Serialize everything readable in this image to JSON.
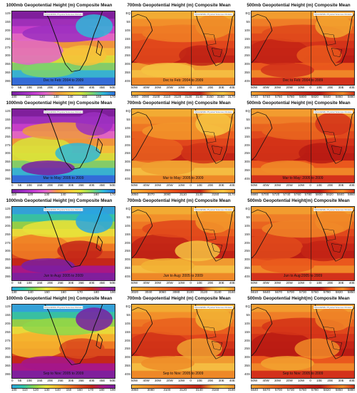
{
  "panels": [
    {
      "title": "1000mb Geopotential Height (m) Composite Mean",
      "period": "Dec to Feb: 2004 to 2009",
      "lats": [
        "12S",
        "15S",
        "20S",
        "25S",
        "27S",
        "30S",
        "35S",
        "36S",
        "39S"
      ],
      "lons": [
        "0",
        "5E",
        "10E",
        "15E",
        "20E",
        "25E",
        "30E",
        "35E",
        "40E",
        "45E",
        "50E"
      ],
      "ticks": [
        "100",
        "110",
        "120",
        "130",
        "140",
        "150",
        "160",
        "170"
      ],
      "style": "purple"
    },
    {
      "title": "700mb Geopotential Height (m) Composite Mean",
      "period": "Dec to Feb: 2004 to 2009",
      "lats": [
        "EQ",
        "5S",
        "10S",
        "15S",
        "20S",
        "25S",
        "30S",
        "35S",
        "40S"
      ],
      "lons": [
        "50W",
        "40W",
        "30W",
        "20W",
        "10W",
        "0",
        "10E",
        "20E",
        "30E",
        "40E"
      ],
      "ticks": [
        "3080",
        "3090",
        "3100",
        "3110",
        "3120",
        "3130",
        "3140",
        "3150",
        "3160",
        "3170"
      ],
      "style": "warm"
    },
    {
      "title": "500mb Geopotential Height (m) Composite Mean",
      "period": "Dec to Feb: 2004 to 2009",
      "lats": [
        "EQ",
        "5S",
        "10S",
        "15S",
        "20S",
        "25S",
        "30S",
        "35S",
        "40S"
      ],
      "lons": [
        "50W",
        "40W",
        "30W",
        "20W",
        "10W",
        "0",
        "10E",
        "20E",
        "30E",
        "40E"
      ],
      "ticks": [
        "5720",
        "5740",
        "5760",
        "5780",
        "5800",
        "5820",
        "5840",
        "5860",
        "5880"
      ],
      "style": "hot"
    },
    {
      "title": "1000mb Geopotential Height (m) Composite Mean",
      "period": "Mar to May: 2005 to 2009",
      "lats": [
        "12S",
        "15S",
        "20S",
        "25S",
        "27S",
        "30S",
        "35S",
        "36S",
        "39S"
      ],
      "lons": [
        "0",
        "5E",
        "10E",
        "15E",
        "20E",
        "25E",
        "30E",
        "35E",
        "40E",
        "45E",
        "50E"
      ],
      "ticks": [
        "110",
        "120",
        "130",
        "140",
        "150",
        "160",
        "170"
      ],
      "style": "purple"
    },
    {
      "title": "700mb Geopotential Height (m) Composite Mean",
      "period": "Mar to May: 2005 to 2009",
      "lats": [
        "EQ",
        "5S",
        "10S",
        "15S",
        "20S",
        "25S",
        "30S",
        "35S",
        "40S"
      ],
      "lons": [
        "50W",
        "40W",
        "30W",
        "20W",
        "10W",
        "0",
        "10E",
        "20E",
        "30E",
        "40E"
      ],
      "ticks": [
        "3050",
        "3070",
        "3090",
        "3110",
        "3130",
        "3150",
        "3170"
      ],
      "style": "warm"
    },
    {
      "title": "500mb Geopotential Height (m) Composite Mean",
      "period": "Mar to May: 2005 to 2009",
      "lats": [
        "EQ",
        "5S",
        "10S",
        "15S",
        "20S",
        "25S",
        "30S",
        "35S",
        "40S"
      ],
      "lons": [
        "50W",
        "40W",
        "30W",
        "20W",
        "10W",
        "0",
        "10E",
        "20E",
        "30E",
        "40E"
      ],
      "ticks": [
        "5680",
        "5700",
        "5720",
        "5740",
        "5760",
        "5780",
        "5800",
        "5820",
        "5840",
        "5860"
      ],
      "style": "hot"
    },
    {
      "title": "1000mb Geopotential Height (m) Composite Mean",
      "period": "Jun to Aug: 2005 to 2009",
      "lats": [
        "12S",
        "15S",
        "20S",
        "25S",
        "27S",
        "30S",
        "35S",
        "36S",
        "39S"
      ],
      "lons": [
        "0",
        "5E",
        "10E",
        "15E",
        "20E",
        "25E",
        "30E",
        "35E",
        "40E",
        "45E",
        "50E"
      ],
      "ticks": [
        "130",
        "140",
        "150",
        "160",
        "170",
        "180",
        "190"
      ],
      "style": "mixed"
    },
    {
      "title": "700mb Geopotential Height (m) Composite Mean",
      "period": "Jun to Aug: 2005 to 2009",
      "lats": [
        "EQ",
        "5S",
        "10S",
        "15S",
        "20S",
        "25S",
        "30S",
        "35S",
        "40S"
      ],
      "lons": [
        "50W",
        "40W",
        "30W",
        "20W",
        "10W",
        "0",
        "10E",
        "20E",
        "30E",
        "40E"
      ],
      "ticks": [
        "3020",
        "3040",
        "3060",
        "3080",
        "3100",
        "3120",
        "3140",
        "3160"
      ],
      "style": "warm"
    },
    {
      "title": "500mb Geopotential Height(m) Composite Mean",
      "period": "Jun to Aug:2005 to 2009",
      "lats": [
        "EQ",
        "5S",
        "10S",
        "15S",
        "20S",
        "25S",
        "30S",
        "35S",
        "40S"
      ],
      "lons": [
        "50W",
        "40W",
        "30W",
        "20W",
        "10W",
        "0",
        "10E",
        "20E",
        "30E",
        "40E"
      ],
      "ticks": [
        "5610",
        "5640",
        "5670",
        "5700",
        "5730",
        "5760",
        "5790",
        "5820",
        "5850"
      ],
      "style": "hot"
    },
    {
      "title": "1000mb Geopotential Height (m) Composite Mean",
      "period": "Sep to Nov: 2005 to 2009",
      "lats": [
        "12S",
        "15S",
        "20S",
        "25S",
        "27S",
        "30S",
        "35S",
        "36S",
        "39S"
      ],
      "lons": [
        "0",
        "5E",
        "10E",
        "15E",
        "20E",
        "25E",
        "30E",
        "35E",
        "40E",
        "45E",
        "50E"
      ],
      "ticks": [
        "100",
        "110",
        "120",
        "130",
        "140",
        "150",
        "160",
        "170",
        "180",
        "190"
      ],
      "style": "mixed"
    },
    {
      "title": "700mb Geopotential Height (m) Composite Mean",
      "period": "Sep to Nov: 2005 to 2009",
      "lats": [
        "EQ",
        "5S",
        "10S",
        "15S",
        "20S",
        "25S",
        "30S",
        "35S",
        "40S"
      ],
      "lons": [
        "50W",
        "40W",
        "30W",
        "20W",
        "10W",
        "0",
        "10E",
        "20E",
        "30E",
        "40E"
      ],
      "ticks": [
        "3060",
        "3080",
        "3100",
        "3120",
        "3140",
        "3160",
        "3180"
      ],
      "style": "warm"
    },
    {
      "title": "500mb Geopotential Height(m) Composite Mean",
      "period": "Sep to Nov: 2005 to 2009",
      "lats": [
        "EQ",
        "5S",
        "10S",
        "15S",
        "20S",
        "25S",
        "30S",
        "35S",
        "40S"
      ],
      "lons": [
        "50W",
        "40W",
        "30W",
        "20W",
        "10W",
        "0",
        "10E",
        "20E",
        "30E",
        "40E"
      ],
      "ticks": [
        "5640",
        "5670",
        "5700",
        "5730",
        "5760",
        "5790",
        "5820",
        "5850",
        "5880"
      ],
      "style": "hot"
    }
  ],
  "credit": "NOAA/ESRL Physical Sciences Division",
  "colorbar": [
    "#7a1fa2",
    "#3b2fd6",
    "#1f78ff",
    "#27c4e8",
    "#2bd88b",
    "#8fe03a",
    "#e8e23a",
    "#f5a623",
    "#ef5a1e",
    "#c8141a"
  ]
}
